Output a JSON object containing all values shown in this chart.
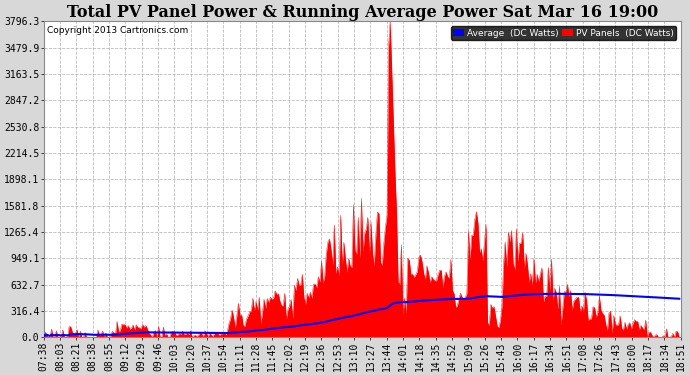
{
  "title": "Total PV Panel Power & Running Average Power Sat Mar 16 19:00",
  "copyright": "Copyright 2013 Cartronics.com",
  "legend_avg": "Average  (DC Watts)",
  "legend_pv": "PV Panels  (DC Watts)",
  "ylabel_values": [
    0.0,
    316.4,
    632.7,
    949.1,
    1265.4,
    1581.8,
    1898.1,
    2214.5,
    2530.8,
    2847.2,
    3163.5,
    3479.9,
    3796.3
  ],
  "ymax": 3796.3,
  "bg_color": "#d8d8d8",
  "plot_bg_color": "#ffffff",
  "pv_fill_color": "#ff0000",
  "avg_line_color": "#0000ff",
  "grid_color": "#aaaaaa",
  "title_fontsize": 11.5,
  "tick_fontsize": 7,
  "time_labels": [
    "07:38",
    "08:03",
    "08:21",
    "08:38",
    "08:55",
    "09:12",
    "09:29",
    "09:46",
    "10:03",
    "10:20",
    "10:37",
    "10:54",
    "11:11",
    "11:28",
    "11:45",
    "12:02",
    "12:19",
    "12:36",
    "12:53",
    "13:10",
    "13:27",
    "13:44",
    "14:01",
    "14:18",
    "14:35",
    "14:52",
    "15:09",
    "15:26",
    "15:43",
    "16:00",
    "16:17",
    "16:34",
    "16:51",
    "17:08",
    "17:26",
    "17:43",
    "18:00",
    "18:17",
    "18:34",
    "18:51"
  ]
}
